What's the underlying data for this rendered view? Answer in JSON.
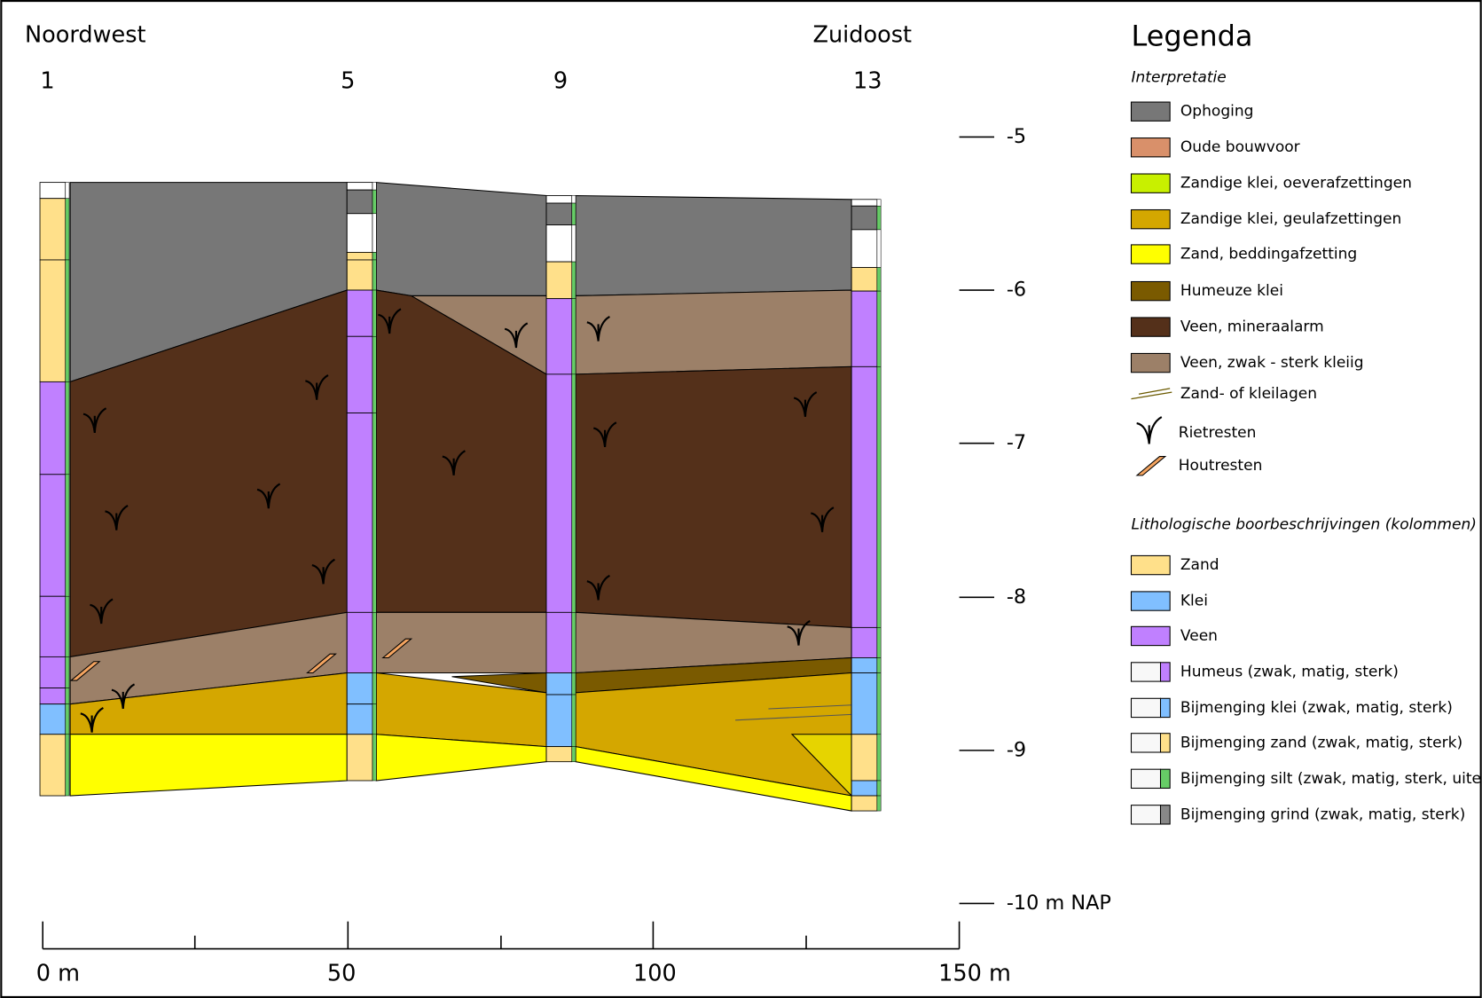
{
  "header": {
    "left": "Noordwest",
    "right": "Zuidoost"
  },
  "boreholes": [
    "1",
    "5",
    "9",
    "13"
  ],
  "depth_scale": [
    "-5",
    "-6",
    "-7",
    "-8",
    "-9",
    "-10 m NAP"
  ],
  "distance_scale": [
    "0 m",
    "50",
    "100",
    "150 m"
  ],
  "legend": {
    "title": "Legenda",
    "interpretation": {
      "title": "Interpretatie",
      "items": [
        "Ophoging",
        "Oude bouwvoor",
        "Zandige klei, oeverafzettingen",
        "Zandige klei, geulafzettingen",
        "Zand, beddingafzetting",
        "Humeuze klei",
        "Veen, mineraalarm",
        "Veen, zwak - sterk kleiig",
        "Zand- of kleilagen",
        "Rietresten",
        "Houtresten"
      ]
    },
    "lithology": {
      "title": "Lithologische boorbeschrijvingen (kolommen)",
      "items": [
        "Zand",
        "Klei",
        "Veen",
        "Humeus (zwak, matig, sterk)",
        "Bijmenging klei (zwak, matig, sterk)",
        "Bijmenging zand (zwak, matig, sterk)",
        "Bijmenging silt (zwak, matig, sterk, uiterst)",
        "Bijmenging grind (zwak, matig, sterk)"
      ]
    }
  }
}
